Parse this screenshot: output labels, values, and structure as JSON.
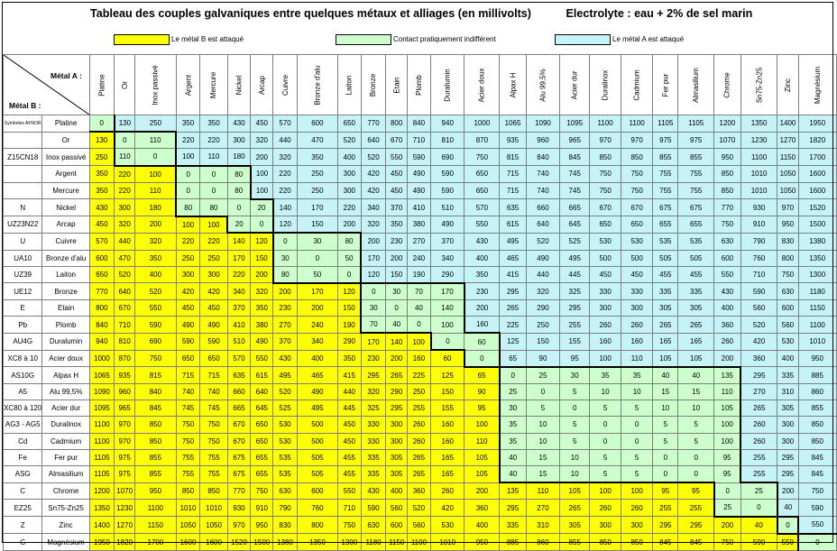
{
  "title": "Tableau des couples galvaniques entre quelques métaux et alliages (en millivolts)",
  "electrolyte": "Electrolyte : eau + 2% de sel marin",
  "legend": [
    {
      "label": "Le métal B est attaqué",
      "color": "#ffff00"
    },
    {
      "label": "Contact pratiquement indifférent",
      "color": "#ccffcc"
    },
    {
      "label": "Le métal A est attaqué",
      "color": "#c5f3f8"
    }
  ],
  "corner": {
    "metal_a": "Métal A :",
    "metal_b": "Métal B :"
  },
  "symbols_header": "Symboles AFNOR",
  "metals": [
    "Platine",
    "Or",
    "Inox passivé",
    "Argent",
    "Mercure",
    "Nickel",
    "Arcap",
    "Cuivre",
    "Bronze d'alu",
    "Laiton",
    "Bronze",
    "Etain",
    "Plomb",
    "Duralumin",
    "Acier doux",
    "Alpax H",
    "Alu 99,5%",
    "Acier dur",
    "Duralinox",
    "Cadmium",
    "Fer pur",
    "Almasilium",
    "Chrome",
    "Sn75-Zn25",
    "Zinc",
    "Magnésium"
  ],
  "symbols": [
    "Symboles AFNOR",
    "",
    "Z15CN18",
    "",
    "",
    "N",
    "UZ23N22",
    "U",
    "UA10",
    "UZ39",
    "UE12",
    "E",
    "Pb",
    "AU4G",
    "XC8 à 10",
    "AS10G",
    "A5",
    "XC80 à 120",
    "AG3 - AG5",
    "Cd",
    "Fe",
    "ASG",
    "C",
    "EZ25",
    "Z",
    "G"
  ],
  "values": [
    [
      0,
      130,
      250,
      350,
      350,
      430,
      450,
      570,
      600,
      650,
      770,
      800,
      840,
      940,
      1000,
      1065,
      1090,
      1095,
      1100,
      1100,
      1105,
      1105,
      1200,
      1350,
      1400,
      1950
    ],
    [
      130,
      0,
      110,
      220,
      220,
      300,
      320,
      440,
      470,
      520,
      640,
      670,
      710,
      810,
      870,
      935,
      960,
      965,
      970,
      970,
      975,
      975,
      1070,
      1230,
      1270,
      1820
    ],
    [
      250,
      110,
      0,
      100,
      110,
      180,
      200,
      320,
      350,
      400,
      520,
      550,
      590,
      690,
      750,
      815,
      840,
      845,
      850,
      850,
      855,
      855,
      950,
      1100,
      1150,
      1700
    ],
    [
      350,
      220,
      100,
      0,
      0,
      80,
      100,
      220,
      250,
      300,
      420,
      450,
      490,
      590,
      650,
      715,
      740,
      745,
      750,
      750,
      755,
      755,
      850,
      1010,
      1050,
      1600
    ],
    [
      350,
      220,
      110,
      0,
      0,
      80,
      100,
      220,
      250,
      300,
      420,
      450,
      490,
      590,
      650,
      715,
      740,
      745,
      750,
      750,
      755,
      755,
      850,
      1010,
      1050,
      1600
    ],
    [
      430,
      300,
      180,
      80,
      80,
      0,
      20,
      140,
      170,
      220,
      340,
      370,
      410,
      510,
      570,
      635,
      660,
      665,
      670,
      670,
      675,
      675,
      770,
      930,
      970,
      1520
    ],
    [
      450,
      320,
      200,
      100,
      100,
      20,
      0,
      120,
      150,
      200,
      320,
      350,
      380,
      490,
      550,
      615,
      640,
      645,
      650,
      650,
      655,
      655,
      750,
      910,
      950,
      1500
    ],
    [
      570,
      440,
      320,
      220,
      220,
      140,
      120,
      0,
      30,
      80,
      200,
      230,
      270,
      370,
      430,
      495,
      520,
      525,
      530,
      530,
      535,
      535,
      630,
      790,
      830,
      1380
    ],
    [
      600,
      470,
      350,
      250,
      250,
      170,
      150,
      30,
      0,
      50,
      170,
      200,
      240,
      340,
      400,
      465,
      490,
      495,
      500,
      500,
      505,
      505,
      600,
      760,
      800,
      1350
    ],
    [
      650,
      520,
      400,
      300,
      300,
      220,
      200,
      80,
      50,
      0,
      120,
      150,
      190,
      290,
      350,
      415,
      440,
      445,
      450,
      450,
      455,
      455,
      550,
      710,
      750,
      1300
    ],
    [
      770,
      640,
      520,
      420,
      420,
      340,
      320,
      200,
      170,
      120,
      0,
      30,
      70,
      170,
      230,
      295,
      320,
      325,
      330,
      330,
      335,
      335,
      430,
      590,
      630,
      1180
    ],
    [
      800,
      670,
      550,
      450,
      450,
      370,
      350,
      230,
      200,
      150,
      30,
      0,
      40,
      140,
      200,
      265,
      290,
      295,
      300,
      300,
      305,
      305,
      400,
      560,
      600,
      1150
    ],
    [
      840,
      710,
      590,
      490,
      490,
      410,
      380,
      270,
      240,
      190,
      70,
      40,
      0,
      100,
      160,
      225,
      250,
      255,
      260,
      260,
      265,
      265,
      360,
      520,
      560,
      1100
    ],
    [
      940,
      810,
      690,
      590,
      590,
      510,
      490,
      370,
      340,
      290,
      170,
      140,
      100,
      0,
      60,
      125,
      150,
      155,
      160,
      160,
      165,
      165,
      260,
      420,
      530,
      1010
    ],
    [
      1000,
      870,
      750,
      650,
      650,
      570,
      550,
      430,
      400,
      350,
      230,
      200,
      160,
      60,
      0,
      65,
      90,
      95,
      100,
      110,
      105,
      105,
      200,
      360,
      400,
      950
    ],
    [
      1065,
      935,
      815,
      715,
      715,
      635,
      615,
      495,
      465,
      415,
      295,
      265,
      225,
      125,
      65,
      0,
      25,
      30,
      35,
      35,
      40,
      40,
      135,
      295,
      335,
      885
    ],
    [
      1090,
      960,
      840,
      740,
      740,
      660,
      640,
      520,
      490,
      440,
      320,
      290,
      250,
      150,
      90,
      25,
      0,
      5,
      10,
      10,
      15,
      15,
      110,
      270,
      310,
      860
    ],
    [
      1095,
      965,
      845,
      745,
      745,
      665,
      645,
      525,
      495,
      445,
      325,
      295,
      255,
      155,
      95,
      30,
      5,
      0,
      5,
      5,
      10,
      10,
      105,
      265,
      305,
      855
    ],
    [
      1100,
      970,
      850,
      750,
      750,
      670,
      650,
      530,
      500,
      450,
      330,
      300,
      260,
      160,
      100,
      35,
      10,
      5,
      0,
      0,
      5,
      5,
      100,
      260,
      300,
      850
    ],
    [
      1100,
      970,
      850,
      750,
      750,
      670,
      650,
      530,
      500,
      450,
      330,
      300,
      260,
      160,
      110,
      35,
      10,
      5,
      0,
      0,
      5,
      5,
      100,
      260,
      300,
      850
    ],
    [
      1105,
      975,
      855,
      755,
      755,
      675,
      655,
      535,
      505,
      455,
      335,
      305,
      265,
      165,
      105,
      40,
      15,
      10,
      5,
      5,
      0,
      0,
      95,
      255,
      295,
      845
    ],
    [
      1105,
      975,
      855,
      755,
      755,
      675,
      655,
      535,
      505,
      455,
      335,
      305,
      265,
      165,
      105,
      40,
      15,
      10,
      5,
      5,
      0,
      0,
      95,
      255,
      295,
      845
    ],
    [
      1200,
      1070,
      950,
      850,
      850,
      770,
      750,
      630,
      600,
      550,
      430,
      400,
      360,
      260,
      200,
      135,
      110,
      105,
      100,
      100,
      95,
      95,
      0,
      25,
      200,
      750
    ],
    [
      1350,
      1230,
      1100,
      1010,
      1010,
      930,
      910,
      790,
      760,
      710,
      590,
      560,
      520,
      420,
      360,
      295,
      270,
      265,
      260,
      260,
      255,
      255,
      25,
      0,
      40,
      590
    ],
    [
      1400,
      1270,
      1150,
      1050,
      1050,
      970,
      950,
      830,
      800,
      750,
      630,
      600,
      560,
      530,
      400,
      335,
      310,
      305,
      300,
      300,
      295,
      295,
      200,
      40,
      0,
      550
    ],
    [
      1950,
      1820,
      1700,
      1600,
      1600,
      1520,
      1500,
      1380,
      1350,
      1300,
      1180,
      1150,
      1100,
      1010,
      950,
      885,
      860,
      855,
      850,
      850,
      845,
      845,
      750,
      590,
      550,
      0
    ]
  ],
  "green_bounds": [
    [
      0,
      0
    ],
    [
      1,
      2
    ],
    [
      1,
      2
    ],
    [
      3,
      5
    ],
    [
      3,
      5
    ],
    [
      3,
      6
    ],
    [
      5,
      6
    ],
    [
      7,
      9
    ],
    [
      7,
      9
    ],
    [
      7,
      9
    ],
    [
      10,
      13
    ],
    [
      10,
      13
    ],
    [
      10,
      13
    ],
    [
      13,
      14
    ],
    [
      14,
      14
    ],
    [
      15,
      22
    ],
    [
      15,
      22
    ],
    [
      15,
      22
    ],
    [
      15,
      22
    ],
    [
      15,
      22
    ],
    [
      15,
      22
    ],
    [
      15,
      22
    ],
    [
      22,
      23
    ],
    [
      22,
      23
    ],
    [
      24,
      24
    ],
    [
      25,
      25
    ]
  ]
}
